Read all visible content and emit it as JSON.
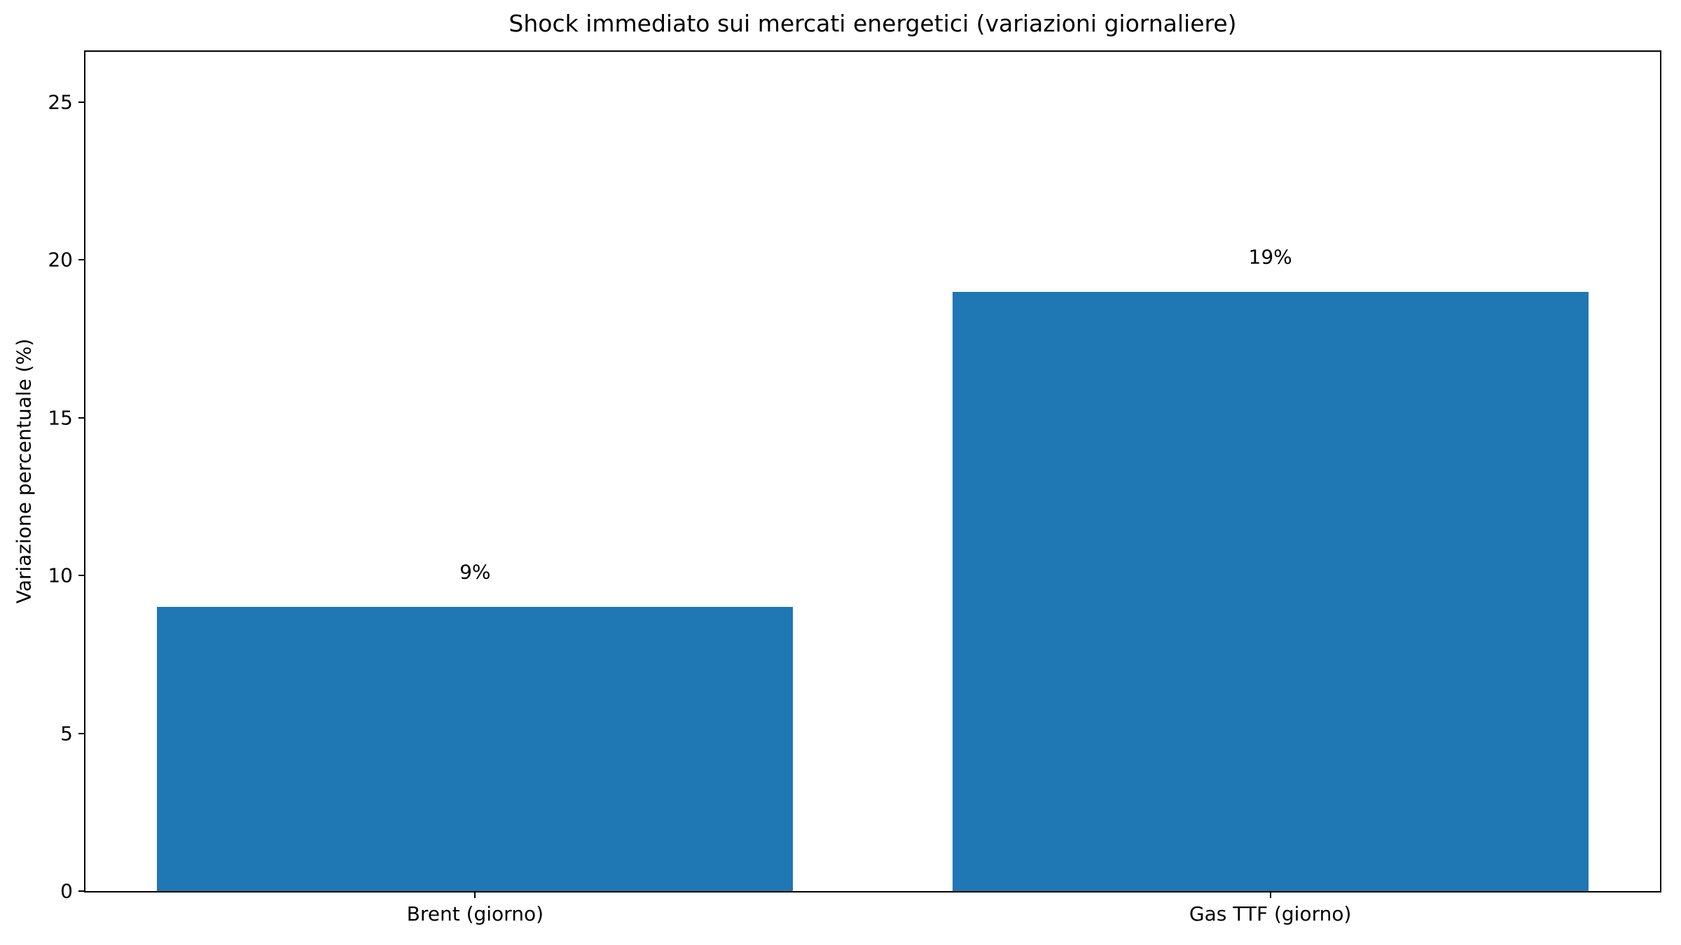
{
  "chart_data": {
    "type": "bar",
    "title": "Shock immediato sui mercati energetici (variazioni giornaliere)",
    "xlabel": "",
    "ylabel": "Variazione percentuale (%)",
    "categories": [
      "Brent (giorno)",
      "Gas TTF (giorno)"
    ],
    "values": [
      9,
      19
    ],
    "bar_labels": [
      "9%",
      "19%"
    ],
    "yticks": [
      0,
      5,
      10,
      15,
      20,
      25
    ],
    "ylim": [
      0,
      26.6
    ],
    "xlim": [
      -0.49,
      1.49
    ],
    "bar_width": 0.8,
    "bar_color": "#1f77b4",
    "spine_color": "#000000",
    "text_color": "#000000",
    "background_color": "#ffffff",
    "grid": false,
    "legend_position": "none"
  }
}
